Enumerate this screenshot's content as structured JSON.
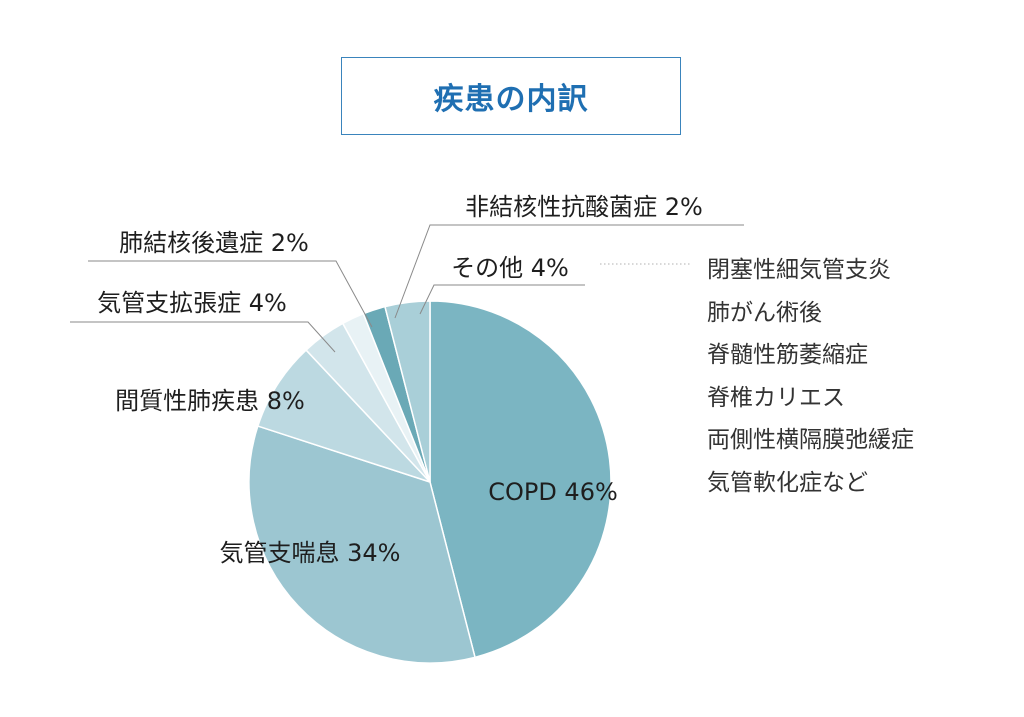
{
  "chart_data": {
    "type": "pie",
    "title": "疾患の内訳",
    "slices": [
      {
        "label": "COPD",
        "value": 46,
        "label_text": "COPD 46%",
        "color": "#7bb5c2"
      },
      {
        "label": "気管支喘息",
        "value": 34,
        "label_text": "気管支喘息 34%",
        "color": "#9cc6d1"
      },
      {
        "label": "間質性肺疾患",
        "value": 8,
        "label_text": "間質性肺疾患 8%",
        "color": "#bcd9e1"
      },
      {
        "label": "気管支拡張症",
        "value": 4,
        "label_text": "気管支拡張症 4%",
        "color": "#d2e5eb"
      },
      {
        "label": "肺結核後遺症",
        "value": 2,
        "label_text": "肺結核後遺症 2%",
        "color": "#e8f2f5"
      },
      {
        "label": "非結核性抗酸菌症",
        "value": 2,
        "label_text": "非結核性抗酸菌症 2%",
        "color": "#6aa9b6"
      },
      {
        "label": "その他",
        "value": 4,
        "label_text": "その他 4%",
        "color": "#a9cfd8"
      }
    ],
    "other_breakdown": [
      "閉塞性細気管支炎",
      "肺がん術後",
      "脊髄性筋萎縮症",
      "脊椎カリエス",
      "両側性横隔膜弛緩症",
      "気管軟化症など"
    ]
  }
}
